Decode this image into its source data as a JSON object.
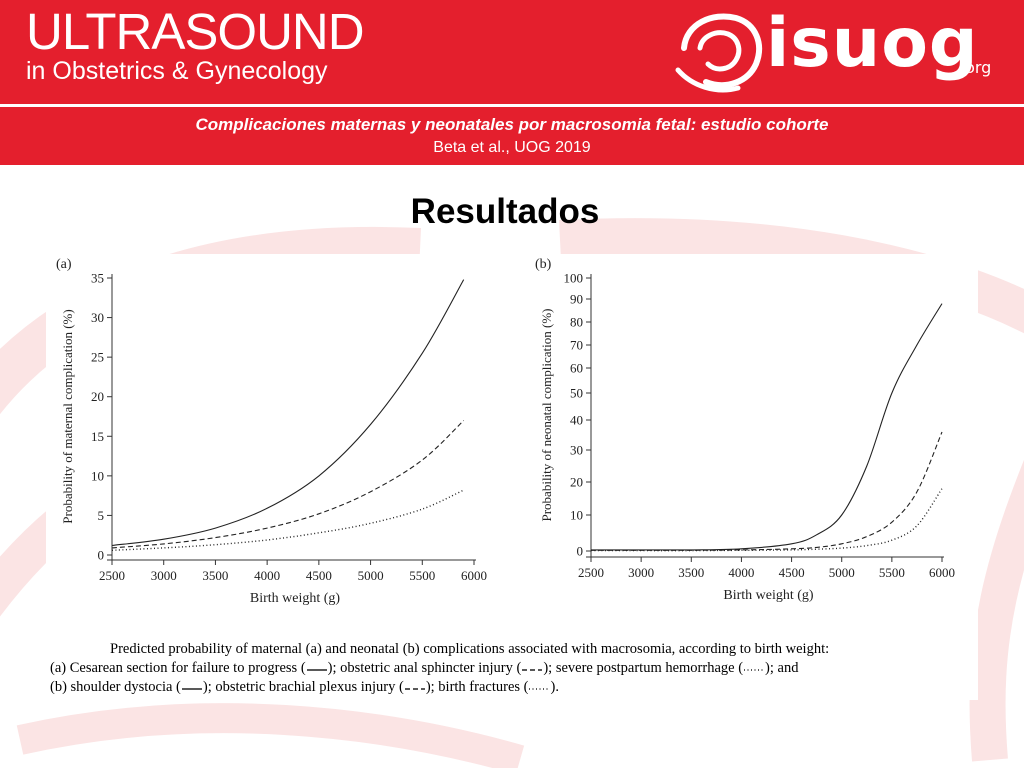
{
  "header": {
    "journal_title": "ULTRASOUND",
    "journal_subtitle": "in Obstetrics & Gynecology",
    "society_name": "isuog",
    "society_tld": ".org",
    "colors": {
      "brand_red": "#e41f2d",
      "text": "#ffffff"
    }
  },
  "banner": {
    "study_title": "Complicaciones maternas y neonatales por macrosomia fetal: estudio cohorte",
    "citation": "Beta et al., UOG 2019"
  },
  "slide": {
    "title": "Resultados"
  },
  "chart_data": [
    {
      "type": "line",
      "panel_label": "(a)",
      "xlabel": "Birth weight (g)",
      "ylabel": "Probability of maternal complication (%)",
      "xlim": [
        2500,
        6000
      ],
      "ylim": [
        0,
        35
      ],
      "x_ticks": [
        2500,
        3000,
        3500,
        4000,
        4500,
        5000,
        5500,
        6000
      ],
      "y_ticks": [
        0,
        5,
        10,
        15,
        20,
        25,
        30,
        35
      ],
      "y_scale": "linear",
      "x": [
        2500,
        3000,
        3500,
        4000,
        4500,
        5000,
        5500,
        5900
      ],
      "series": [
        {
          "name": "Cesarean section for failure to progress",
          "style": "solid",
          "values": [
            1.2,
            2.0,
            3.4,
            5.9,
            10.0,
            16.5,
            25.5,
            34.8
          ]
        },
        {
          "name": "Obstetric anal sphincter injury",
          "style": "dashed",
          "values": [
            0.9,
            1.4,
            2.2,
            3.4,
            5.2,
            8.0,
            12.0,
            17.0
          ]
        },
        {
          "name": "Severe postpartum hemorrhage",
          "style": "dotted",
          "values": [
            0.6,
            0.9,
            1.3,
            1.9,
            2.8,
            4.0,
            5.8,
            8.2
          ]
        }
      ]
    },
    {
      "type": "line",
      "panel_label": "(b)",
      "xlabel": "Birth weight (g)",
      "ylabel": "Probability of neonatal complication (%)",
      "xlim": [
        2500,
        6000
      ],
      "ylim": [
        0,
        100
      ],
      "x_ticks": [
        2500,
        3000,
        3500,
        4000,
        4500,
        5000,
        5500,
        6000
      ],
      "y_ticks": [
        0,
        10,
        20,
        30,
        40,
        50,
        60,
        70,
        80,
        90,
        100
      ],
      "y_scale": "nonlinear",
      "x": [
        2500,
        3000,
        3500,
        4000,
        4500,
        4750,
        5000,
        5250,
        5500,
        5750,
        6000
      ],
      "series": [
        {
          "name": "Shoulder dystocia",
          "style": "solid",
          "values": [
            0.3,
            0.3,
            0.3,
            0.6,
            2.0,
            4.5,
            10.0,
            25.0,
            50.0,
            70.0,
            88.0
          ]
        },
        {
          "name": "Obstetric brachial plexus injury",
          "style": "dashed",
          "values": [
            0.2,
            0.2,
            0.2,
            0.3,
            0.6,
            1.0,
            2.0,
            4.0,
            8.0,
            17.0,
            36.0
          ]
        },
        {
          "name": "Birth fractures",
          "style": "dotted",
          "values": [
            0.1,
            0.1,
            0.1,
            0.2,
            0.3,
            0.5,
            0.8,
            1.5,
            3.0,
            7.0,
            18.0
          ]
        }
      ]
    }
  ],
  "caption": {
    "line1": "Predicted probability of maternal (a) and neonatal (b) complications associated with macrosomia, according to birth weight:",
    "line2_a": "(a) Cesarean section for failure to progress (",
    "line2_b": "); obstetric anal sphincter injury (",
    "line2_c": "); severe postpartum hemorrhage (",
    "line2_d": "); and",
    "line3_a": "(b) shoulder dystocia (",
    "line3_b": "); obstetric brachial plexus injury (",
    "line3_c": "); birth fractures (",
    "line3_d": ")."
  }
}
